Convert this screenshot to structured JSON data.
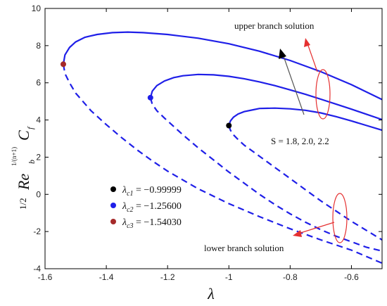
{
  "chart_data": {
    "type": "line",
    "xlabel": "λ",
    "ylabel": {
      "frac": "1/2",
      "base": "Re",
      "sub": "b",
      "exp": "1/(n+1)",
      "tail": "C",
      "tail_sub": "f"
    },
    "xlim": [
      -1.6,
      -0.5
    ],
    "ylim": [
      -4,
      10
    ],
    "x_ticks": [
      -1.6,
      -1.4,
      -1.2,
      -1.0,
      -0.8,
      -0.6
    ],
    "y_ticks": [
      -4,
      -2,
      0,
      2,
      4,
      6,
      8,
      10
    ],
    "grid": false,
    "legend_position": "lower-left",
    "legend": [
      {
        "prefix": "λ",
        "sub": "c1",
        "value": " = −0.99999",
        "color": "#000000"
      },
      {
        "prefix": "λ",
        "sub": "c2",
        "value": " = −1.25600",
        "color": "#1f1fe8"
      },
      {
        "prefix": "λ",
        "sub": "c3",
        "value": " = −1.54030",
        "color": "#a52a2a"
      }
    ],
    "annotations": {
      "upper": "upper branch solution",
      "lower": "lower branch solution",
      "s_values": "S = 1.8, 2.0, 2.2"
    },
    "series": [
      {
        "line_color": "#1f1fe8",
        "critical_point": [
          -0.99999,
          3.7
        ],
        "point_color": "#000000",
        "upper": [
          [
            -0.99999,
            3.7
          ],
          [
            -0.995,
            3.95
          ],
          [
            -0.985,
            4.15
          ],
          [
            -0.97,
            4.32
          ],
          [
            -0.95,
            4.45
          ],
          [
            -0.92,
            4.55
          ],
          [
            -0.9,
            4.62
          ],
          [
            -0.85,
            4.64
          ],
          [
            -0.8,
            4.6
          ],
          [
            -0.75,
            4.52
          ],
          [
            -0.7,
            4.38
          ],
          [
            -0.65,
            4.18
          ],
          [
            -0.6,
            3.95
          ],
          [
            -0.55,
            3.7
          ],
          [
            -0.5,
            3.45
          ]
        ],
        "lower": [
          [
            -0.99999,
            3.7
          ],
          [
            -0.995,
            3.45
          ],
          [
            -0.985,
            3.2
          ],
          [
            -0.97,
            2.95
          ],
          [
            -0.95,
            2.65
          ],
          [
            -0.9,
            2.05
          ],
          [
            -0.85,
            1.45
          ],
          [
            -0.8,
            0.85
          ],
          [
            -0.75,
            0.25
          ],
          [
            -0.7,
            -0.35
          ],
          [
            -0.65,
            -0.9
          ],
          [
            -0.6,
            -1.45
          ],
          [
            -0.55,
            -1.95
          ],
          [
            -0.5,
            -2.45
          ]
        ]
      },
      {
        "line_color": "#1f1fe8",
        "critical_point": [
          -1.256,
          5.2
        ],
        "point_color": "#1f1fe8",
        "upper": [
          [
            -1.256,
            5.2
          ],
          [
            -1.25,
            5.55
          ],
          [
            -1.235,
            5.85
          ],
          [
            -1.21,
            6.1
          ],
          [
            -1.18,
            6.28
          ],
          [
            -1.15,
            6.38
          ],
          [
            -1.1,
            6.45
          ],
          [
            -1.05,
            6.43
          ],
          [
            -1.0,
            6.35
          ],
          [
            -0.95,
            6.22
          ],
          [
            -0.9,
            6.05
          ],
          [
            -0.85,
            5.85
          ],
          [
            -0.8,
            5.62
          ],
          [
            -0.75,
            5.38
          ],
          [
            -0.7,
            5.12
          ],
          [
            -0.65,
            4.85
          ],
          [
            -0.6,
            4.58
          ],
          [
            -0.55,
            4.3
          ],
          [
            -0.5,
            4.02
          ]
        ],
        "lower": [
          [
            -1.256,
            5.2
          ],
          [
            -1.25,
            4.85
          ],
          [
            -1.235,
            4.5
          ],
          [
            -1.21,
            4.1
          ],
          [
            -1.18,
            3.65
          ],
          [
            -1.15,
            3.2
          ],
          [
            -1.1,
            2.5
          ],
          [
            -1.05,
            1.85
          ],
          [
            -1.0,
            1.2
          ],
          [
            -0.95,
            0.6
          ],
          [
            -0.9,
            0.0
          ],
          [
            -0.85,
            -0.55
          ],
          [
            -0.8,
            -1.05
          ],
          [
            -0.75,
            -1.5
          ],
          [
            -0.7,
            -1.9
          ],
          [
            -0.65,
            -2.25
          ],
          [
            -0.6,
            -2.55
          ],
          [
            -0.55,
            -2.85
          ],
          [
            -0.5,
            -3.05
          ]
        ]
      },
      {
        "line_color": "#1f1fe8",
        "critical_point": [
          -1.5403,
          7.0
        ],
        "point_color": "#a52a2a",
        "upper": [
          [
            -1.5403,
            7.0
          ],
          [
            -1.535,
            7.5
          ],
          [
            -1.52,
            7.9
          ],
          [
            -1.5,
            8.2
          ],
          [
            -1.47,
            8.45
          ],
          [
            -1.43,
            8.6
          ],
          [
            -1.38,
            8.7
          ],
          [
            -1.33,
            8.73
          ],
          [
            -1.28,
            8.7
          ],
          [
            -1.2,
            8.6
          ],
          [
            -1.1,
            8.4
          ],
          [
            -1.0,
            8.1
          ],
          [
            -0.9,
            7.7
          ],
          [
            -0.8,
            7.2
          ],
          [
            -0.7,
            6.6
          ],
          [
            -0.6,
            5.9
          ],
          [
            -0.5,
            5.1
          ]
        ],
        "lower": [
          [
            -1.5403,
            7.0
          ],
          [
            -1.535,
            6.5
          ],
          [
            -1.52,
            6.0
          ],
          [
            -1.5,
            5.45
          ],
          [
            -1.45,
            4.5
          ],
          [
            -1.4,
            3.75
          ],
          [
            -1.35,
            3.05
          ],
          [
            -1.3,
            2.4
          ],
          [
            -1.25,
            1.8
          ],
          [
            -1.2,
            1.25
          ],
          [
            -1.1,
            0.3
          ],
          [
            -1.0,
            -0.5
          ],
          [
            -0.9,
            -1.2
          ],
          [
            -0.8,
            -1.85
          ],
          [
            -0.7,
            -2.45
          ],
          [
            -0.6,
            -3.0
          ],
          [
            -0.5,
            -3.7
          ]
        ]
      }
    ]
  }
}
